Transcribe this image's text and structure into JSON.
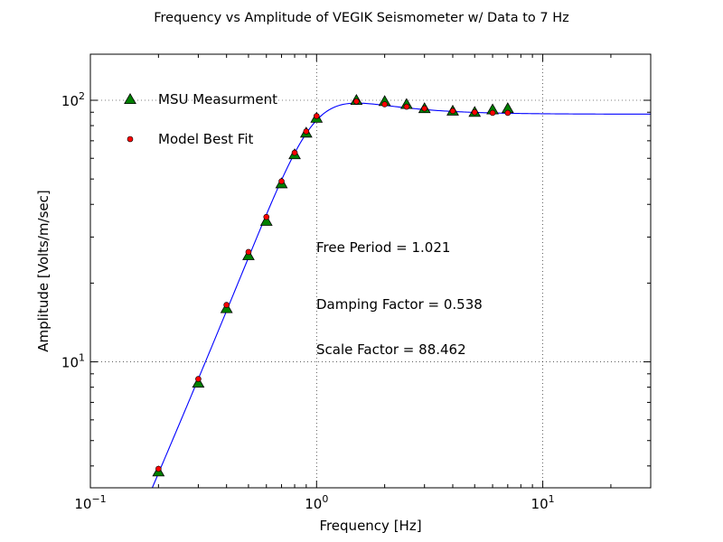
{
  "chart_data": {
    "type": "scatter",
    "title": "Frequency vs Amplitude of VEGIK Seismometer w/ Data to 7 Hz",
    "xlabel": "Frequency [Hz]",
    "ylabel": "Amplitude [Volts/m/sec]",
    "x_scale": "log",
    "y_scale": "log",
    "xlim": [
      0.1,
      30
    ],
    "ylim": [
      3.3,
      150
    ],
    "grid": true,
    "legend_position": "upper-left",
    "x_ticks": [
      {
        "value": 0.1,
        "base": "10",
        "exp": "−1"
      },
      {
        "value": 1,
        "base": "10",
        "exp": "0"
      },
      {
        "value": 10,
        "base": "10",
        "exp": "1"
      }
    ],
    "y_ticks": [
      {
        "value": 10,
        "base": "10",
        "exp": "1"
      },
      {
        "value": 100,
        "base": "10",
        "exp": "2"
      }
    ],
    "series": [
      {
        "name": "MSU Measurment",
        "marker": "triangle",
        "color": "#008000",
        "x": [
          0.2,
          0.3,
          0.4,
          0.5,
          0.6,
          0.7,
          0.8,
          0.9,
          1.0,
          1.5,
          2.0,
          2.5,
          3.0,
          4.0,
          5.0,
          6.0,
          7.0
        ],
        "y": [
          3.8,
          8.3,
          16.0,
          25.5,
          34.5,
          48.0,
          62.0,
          75.0,
          85.5,
          100.0,
          99.0,
          96.5,
          93.0,
          91.0,
          90.0,
          92.0,
          93.0
        ]
      },
      {
        "name": "Model Best Fit",
        "marker": "circle",
        "color": "#ff0000",
        "x": [
          0.2,
          0.3,
          0.4,
          0.5,
          0.6,
          0.7,
          0.8,
          0.9,
          1.0,
          1.5,
          2.0,
          2.5,
          3.0,
          4.0,
          5.0,
          6.0,
          7.0
        ],
        "y": [
          3.9,
          8.6,
          16.5,
          26.3,
          35.8,
          49.0,
          63.0,
          76.0,
          87.0,
          99.0,
          96.5,
          94.5,
          93.0,
          91.0,
          90.0,
          89.5,
          89.5
        ]
      }
    ],
    "fit_curve": {
      "color": "#0000ff",
      "free_period": 1.021,
      "damping": 0.538,
      "scale": 88.462
    },
    "annotations": [
      {
        "id": "free-period",
        "text": "Free Period = 1.021"
      },
      {
        "id": "damping-factor",
        "text": "Damping Factor = 0.538"
      },
      {
        "id": "scale-factor",
        "text": "Scale Factor = 88.462"
      }
    ]
  }
}
